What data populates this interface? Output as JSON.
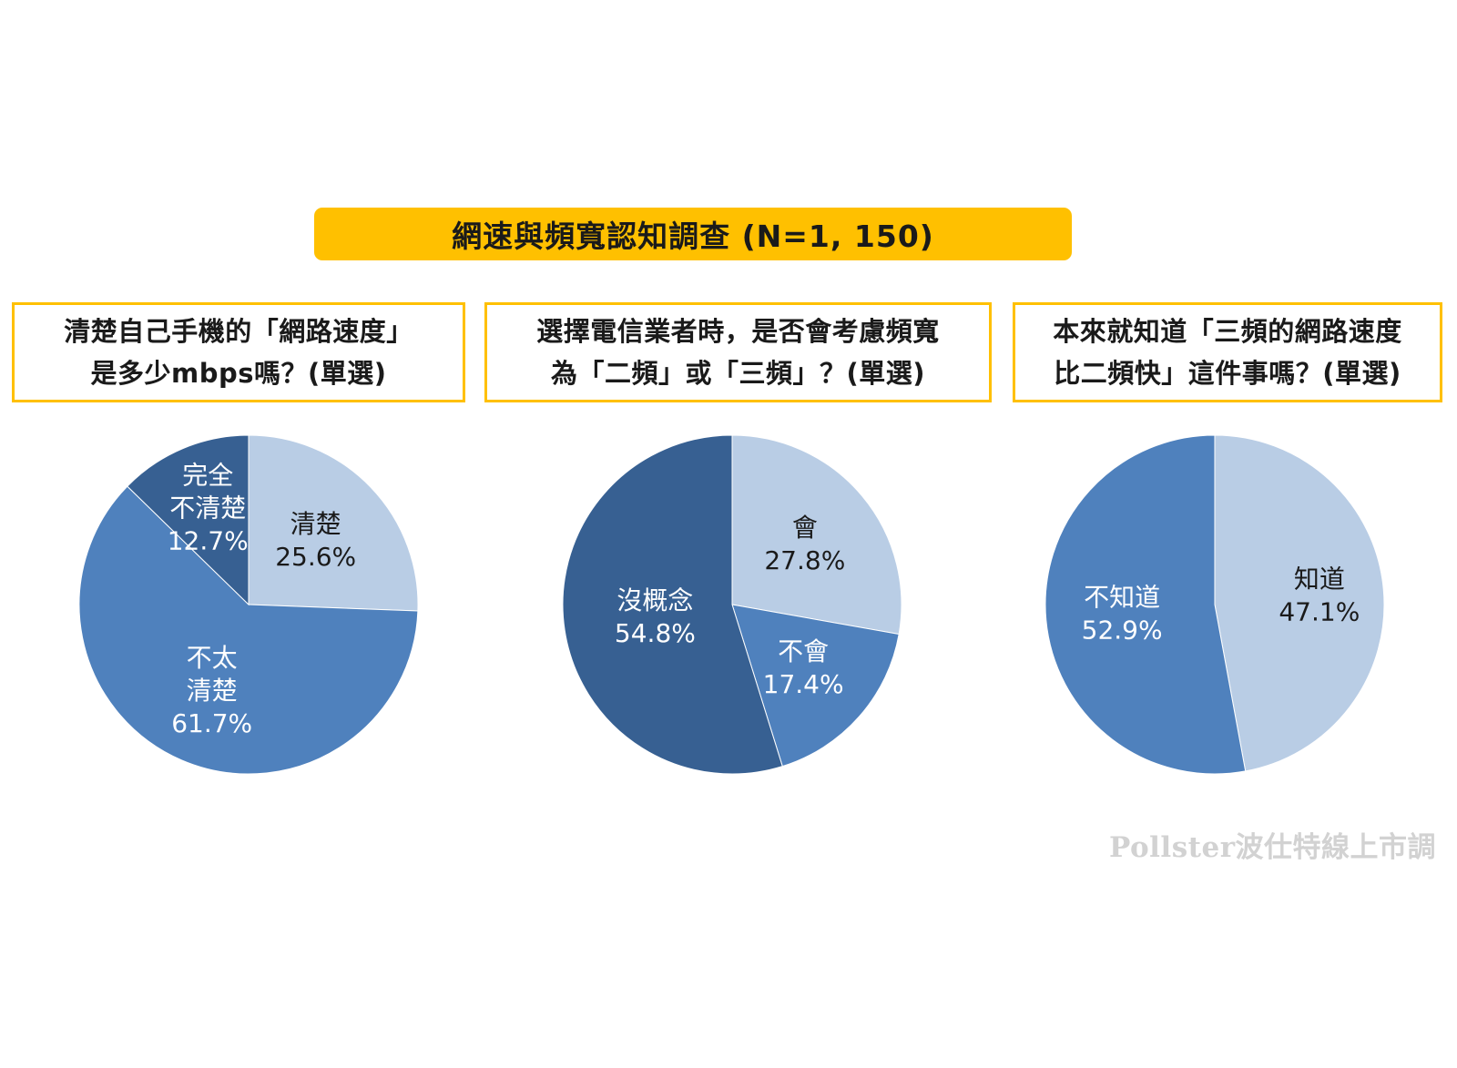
{
  "title": "網速與頻寬認知調查 (N=1, 150)",
  "watermark": "Pollster波仕特線上市調",
  "questions": [
    {
      "line1": "清楚自己手機的「網路速度」",
      "line2": "是多少mbps嗎？(單選)"
    },
    {
      "line1": "選擇電信業者時，是否會考慮頻寬",
      "line2": "為「二頻」或「三頻」？(單選)"
    },
    {
      "line1": "本來就知道「三頻的網路速度",
      "line2": "比二頻快」這件事嗎？(單選)"
    }
  ],
  "chart_data": [
    {
      "type": "pie",
      "slices": [
        {
          "label": [
            "清楚"
          ],
          "value": 25.6,
          "text": "25.6%",
          "color": "#b9cde5",
          "textColor": "#1a1a1a"
        },
        {
          "label": [
            "不太",
            "清楚"
          ],
          "value": 61.7,
          "text": "61.7%",
          "color": "#4f81bd",
          "textColor": "#ffffff"
        },
        {
          "label": [
            "完全",
            "不清楚"
          ],
          "value": 12.7,
          "text": "12.7%",
          "color": "#376092",
          "textColor": "#ffffff"
        }
      ]
    },
    {
      "type": "pie",
      "slices": [
        {
          "label": [
            "會"
          ],
          "value": 27.8,
          "text": "27.8%",
          "color": "#b9cde5",
          "textColor": "#1a1a1a"
        },
        {
          "label": [
            "不會"
          ],
          "value": 17.4,
          "text": "17.4%",
          "color": "#4f81bd",
          "textColor": "#ffffff"
        },
        {
          "label": [
            "沒概念"
          ],
          "value": 54.8,
          "text": "54.8%",
          "color": "#376092",
          "textColor": "#ffffff"
        }
      ]
    },
    {
      "type": "pie",
      "slices": [
        {
          "label": [
            "知道"
          ],
          "value": 47.1,
          "text": "47.1%",
          "color": "#b9cde5",
          "textColor": "#1a1a1a"
        },
        {
          "label": [
            "不知道"
          ],
          "value": 52.9,
          "text": "52.9%",
          "color": "#4f81bd",
          "textColor": "#ffffff"
        }
      ]
    }
  ]
}
